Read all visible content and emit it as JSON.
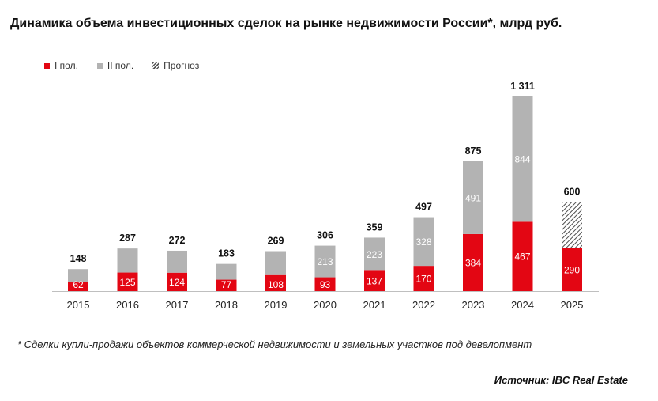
{
  "title": "Динамика объема инвестиционных сделок на рынке недвижимости России*, млрд руб.",
  "legend": {
    "h1_label": "I пол.",
    "h2_label": "II пол.",
    "forecast_label": "Прогноз"
  },
  "footnote": "* Сделки купли-продажи объектов коммерческой недвижимости и земельных участков под девелопмент",
  "source": "Источник: IBC Real Estate",
  "colors": {
    "h1": "#e30613",
    "h2": "#b3b3b3",
    "forecast": "#555555",
    "axis": "#bfbfbf"
  },
  "chart_data": {
    "type": "bar",
    "stacked": true,
    "categories": [
      "2015",
      "2016",
      "2017",
      "2018",
      "2019",
      "2020",
      "2021",
      "2022",
      "2023",
      "2024",
      "2025"
    ],
    "series": [
      {
        "name": "I пол.",
        "values": [
          62,
          125,
          124,
          77,
          108,
          93,
          137,
          170,
          384,
          467,
          290
        ]
      },
      {
        "name": "II пол.",
        "values": [
          86,
          162,
          148,
          106,
          161,
          213,
          223,
          328,
          491,
          844,
          null
        ]
      },
      {
        "name": "Прогноз",
        "values": [
          null,
          null,
          null,
          null,
          null,
          null,
          null,
          null,
          null,
          null,
          310
        ]
      }
    ],
    "segment_labels": {
      "h1": [
        "62",
        "125",
        "124",
        "77",
        "108",
        "93",
        "137",
        "170",
        "384",
        "467",
        "290"
      ],
      "h2": [
        "",
        "",
        "",
        "",
        "",
        "213",
        "223",
        "328",
        "491",
        "844",
        ""
      ]
    },
    "totals": [
      "148",
      "287",
      "272",
      "183",
      "269",
      "306",
      "359",
      "497",
      "875",
      "1 311",
      "600"
    ],
    "ylim": [
      0,
      1311
    ],
    "grid": false,
    "legend_position": "top-left"
  }
}
